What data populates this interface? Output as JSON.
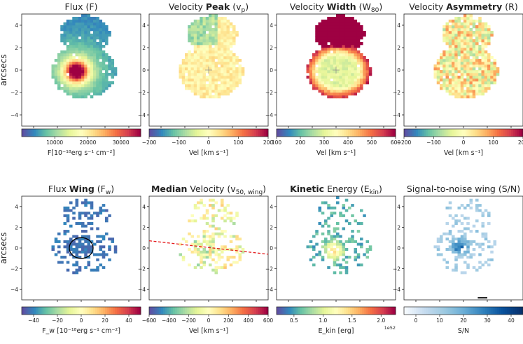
{
  "figure": {
    "ylabel": "arcsecs"
  },
  "colormaps": {
    "spectral": [
      "#5e4fa2",
      "#3288bd",
      "#66c2a5",
      "#abdda4",
      "#e6f598",
      "#ffffbf",
      "#fee08b",
      "#fdae61",
      "#f46d43",
      "#d53e4f",
      "#9e0142"
    ],
    "blues": [
      "#f7fbff",
      "#c6dbef",
      "#9ecae1",
      "#6baed6",
      "#3182bd",
      "#08519c",
      "#08306b"
    ]
  },
  "chart_data": [
    {
      "type": "heatmap",
      "title_parts": [
        {
          "t": "Flux (F)",
          "b": false
        }
      ],
      "colormap": "spectral",
      "colorbar": {
        "min": 0,
        "max": 36000,
        "ticks": [
          10000,
          20000,
          30000
        ],
        "tick_labels": [
          "10000",
          "20000",
          "30000"
        ],
        "label": "F[10⁻¹⁸erg s⁻¹ cm⁻²]"
      },
      "xlim": [
        -5,
        5
      ],
      "ylim": [
        -5,
        5
      ],
      "yticks": [
        4,
        2,
        0,
        -2,
        -4
      ],
      "show_ylabel": true
    },
    {
      "type": "heatmap",
      "title_parts": [
        {
          "t": "Velocity ",
          "b": false
        },
        {
          "t": "Peak",
          "b": true
        },
        {
          "t": " (v",
          "b": false
        },
        {
          "t": "p",
          "sub": true
        },
        {
          "t": ")",
          "b": false
        }
      ],
      "colormap": "spectral",
      "colorbar": {
        "min": -200,
        "max": 200,
        "ticks": [
          -200,
          -100,
          0,
          100,
          200
        ],
        "tick_labels": [
          "−200",
          "−100",
          "0",
          "100",
          "200"
        ],
        "label": "Vel [km s⁻¹]"
      },
      "xlim": [
        -5,
        5
      ],
      "ylim": [
        -5,
        5
      ],
      "yticks": [
        4,
        2,
        0,
        -2,
        -4
      ]
    },
    {
      "type": "heatmap",
      "title_parts": [
        {
          "t": "Velocity ",
          "b": false
        },
        {
          "t": "Width",
          "b": true
        },
        {
          "t": " (W",
          "b": false
        },
        {
          "t": "80",
          "sub": true
        },
        {
          "t": ")",
          "b": false
        }
      ],
      "colormap": "spectral",
      "colorbar": {
        "min": 100,
        "max": 600,
        "ticks": [
          100,
          200,
          300,
          400,
          500,
          600
        ],
        "tick_labels": [
          "100",
          "200",
          "300",
          "400",
          "500",
          "600"
        ],
        "label": "Vel [km s⁻¹]"
      },
      "xlim": [
        -5,
        5
      ],
      "ylim": [
        -5,
        5
      ],
      "yticks": [
        4,
        2,
        0,
        -2,
        -4
      ]
    },
    {
      "type": "heatmap",
      "title_parts": [
        {
          "t": "Velocity ",
          "b": false
        },
        {
          "t": "Asymmetry",
          "b": true
        },
        {
          "t": " (R)",
          "b": false
        }
      ],
      "colormap": "spectral",
      "colorbar": {
        "min": -200,
        "max": 200,
        "ticks": [
          -200,
          -100,
          0,
          100,
          200
        ],
        "tick_labels": [
          "−200",
          "−100",
          "0",
          "100",
          "200"
        ],
        "label": "Vel [km s⁻¹]"
      },
      "xlim": [
        -5,
        5
      ],
      "ylim": [
        -5,
        5
      ],
      "yticks": [
        4,
        2,
        0,
        -2,
        -4
      ]
    },
    {
      "type": "heatmap",
      "title_parts": [
        {
          "t": "Flux ",
          "b": false
        },
        {
          "t": "Wing",
          "b": true
        },
        {
          "t": " (F",
          "b": false
        },
        {
          "t": "w",
          "sub": true
        },
        {
          "t": ")",
          "b": false
        }
      ],
      "colormap": "spectral",
      "colorbar": {
        "min": -50,
        "max": 50,
        "ticks": [
          -40,
          -20,
          0,
          20,
          40
        ],
        "tick_labels": [
          "−40",
          "−20",
          "0",
          "20",
          "40"
        ],
        "label": "F_w [10⁻¹⁸erg s⁻¹ cm⁻²]"
      },
      "xlim": [
        -5,
        5
      ],
      "ylim": [
        -5,
        5
      ],
      "yticks": [
        4,
        2,
        0,
        -2,
        -4
      ],
      "show_ylabel": true,
      "annotation": {
        "type": "circle",
        "center": [
          0,
          0
        ],
        "radius": 1
      }
    },
    {
      "type": "heatmap",
      "title_parts": [
        {
          "t": "Median",
          "b": true
        },
        {
          "t": " Velocity (v",
          "b": false
        },
        {
          "t": "50, wing",
          "sub": true
        },
        {
          "t": ")",
          "b": false
        }
      ],
      "colormap": "spectral",
      "colorbar": {
        "min": -600,
        "max": 600,
        "ticks": [
          -600,
          -400,
          -200,
          0,
          200,
          400,
          600
        ],
        "tick_labels": [
          "−600",
          "−400",
          "−200",
          "0",
          "200",
          "400",
          "600"
        ],
        "label": "Vel [km s⁻¹]"
      },
      "xlim": [
        -5,
        5
      ],
      "ylim": [
        -5,
        5
      ],
      "yticks": [
        4,
        2,
        0,
        -2,
        -4
      ],
      "annotation": {
        "type": "line",
        "from": [
          -5,
          0.7
        ],
        "to": [
          5,
          -0.6
        ]
      }
    },
    {
      "type": "heatmap",
      "title_parts": [
        {
          "t": "Kinetic",
          "b": true
        },
        {
          "t": " Energy (E",
          "b": false
        },
        {
          "t": "kin",
          "sub": true
        },
        {
          "t": ")",
          "b": false
        }
      ],
      "colormap": "spectral",
      "colorbar": {
        "min": 0.2,
        "max": 2.25,
        "ticks": [
          0.5,
          1.0,
          1.5,
          2.0
        ],
        "tick_labels": [
          "0.5",
          "1.0",
          "1.5",
          "2.0"
        ],
        "label": "E_kin [erg]",
        "offset": "1e52"
      },
      "xlim": [
        -5,
        5
      ],
      "ylim": [
        -5,
        5
      ],
      "yticks": [
        4,
        2,
        0,
        -2,
        -4
      ]
    },
    {
      "type": "heatmap",
      "title_parts": [
        {
          "t": "Signal-to-noise wing (S/N)",
          "b": false
        }
      ],
      "colormap": "blues",
      "colorbar": {
        "min": -5,
        "max": 45,
        "ticks": [
          0,
          10,
          20,
          30,
          40
        ],
        "tick_labels": [
          "0",
          "10",
          "20",
          "30",
          "40"
        ],
        "label": "S/N"
      },
      "xlim": [
        -5,
        5
      ],
      "ylim": [
        -5,
        5
      ],
      "yticks": [
        4,
        2,
        0,
        -2,
        -4
      ],
      "annotation": {
        "type": "scalebar",
        "from": [
          1.2,
          -4.8
        ],
        "to": [
          2,
          -4.8
        ]
      }
    }
  ]
}
